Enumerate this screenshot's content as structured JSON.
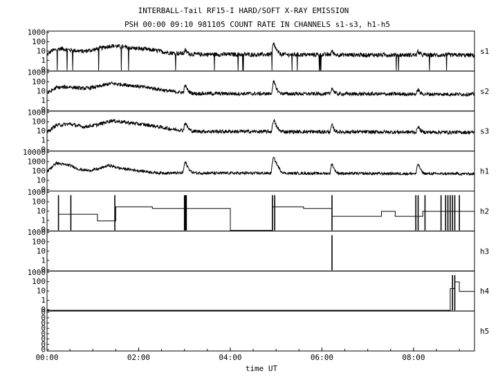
{
  "chart_data": {
    "type": "line",
    "title": "INTERBALL-Tail RF15-I HARD/SOFT X-RAY EMISSION",
    "subtitle": "PSH 00:00 09:10 981105  COUNT RATE IN CHANNELS s1-s3, h1-h5",
    "xlabel": "time UT",
    "x_range_hours": [
      0,
      9.33
    ],
    "x_ticks": [
      {
        "h": 0,
        "label": "00:00"
      },
      {
        "h": 2,
        "label": "02:00"
      },
      {
        "h": 4,
        "label": "04:00"
      },
      {
        "h": 6,
        "label": "06:00"
      },
      {
        "h": 8,
        "label": "08:00"
      }
    ],
    "y_scale": "log",
    "panels": [
      {
        "channel": "s1",
        "ymin": 0.1,
        "ymax": 1000,
        "ytick_labels": [
          "1000",
          "100",
          "10",
          "1",
          "0"
        ],
        "baseline": 4,
        "noise": 0.45,
        "dips": true,
        "envelope": [
          [
            0,
            4
          ],
          [
            0.1,
            12
          ],
          [
            0.3,
            20
          ],
          [
            0.5,
            14
          ],
          [
            0.8,
            10
          ],
          [
            1.1,
            18
          ],
          [
            1.4,
            40
          ],
          [
            1.8,
            25
          ],
          [
            2.3,
            14
          ],
          [
            2.7,
            7
          ],
          [
            3.2,
            5
          ],
          [
            9.33,
            4
          ]
        ],
        "peaks": [
          {
            "t": 3.02,
            "a": 8,
            "w": 0.06
          },
          {
            "t": 4.95,
            "a": 60,
            "w": 0.06
          },
          {
            "t": 6.22,
            "a": 7,
            "w": 0.05
          },
          {
            "t": 8.1,
            "a": 6,
            "w": 0.05
          }
        ]
      },
      {
        "channel": "s2",
        "ymin": 0.1,
        "ymax": 1000,
        "ytick_labels": [
          "1000",
          "100",
          "10",
          "1",
          "0"
        ],
        "baseline": 5,
        "noise": 0.38,
        "dips": false,
        "envelope": [
          [
            0,
            6
          ],
          [
            0.2,
            25
          ],
          [
            0.5,
            30
          ],
          [
            0.8,
            20
          ],
          [
            1.1,
            30
          ],
          [
            1.4,
            70
          ],
          [
            1.8,
            45
          ],
          [
            2.3,
            22
          ],
          [
            2.7,
            10
          ],
          [
            3.2,
            6
          ],
          [
            9.33,
            5
          ]
        ],
        "peaks": [
          {
            "t": 3.02,
            "a": 35,
            "w": 0.06
          },
          {
            "t": 4.95,
            "a": 90,
            "w": 0.06
          },
          {
            "t": 6.22,
            "a": 20,
            "w": 0.05
          },
          {
            "t": 8.1,
            "a": 12,
            "w": 0.05
          }
        ]
      },
      {
        "channel": "s3",
        "ymin": 0.1,
        "ymax": 1000,
        "ytick_labels": [
          "1000",
          "100",
          "10",
          "1",
          "0"
        ],
        "baseline": 8,
        "noise": 0.38,
        "dips": false,
        "envelope": [
          [
            0,
            8
          ],
          [
            0.2,
            45
          ],
          [
            0.5,
            60
          ],
          [
            0.8,
            30
          ],
          [
            1.1,
            50
          ],
          [
            1.4,
            140
          ],
          [
            1.8,
            80
          ],
          [
            2.3,
            40
          ],
          [
            2.7,
            18
          ],
          [
            3.2,
            10
          ],
          [
            9.33,
            8
          ]
        ],
        "peaks": [
          {
            "t": 3.02,
            "a": 70,
            "w": 0.06
          },
          {
            "t": 4.95,
            "a": 150,
            "w": 0.06
          },
          {
            "t": 6.22,
            "a": 40,
            "w": 0.05
          },
          {
            "t": 8.1,
            "a": 30,
            "w": 0.05
          }
        ]
      },
      {
        "channel": "h1",
        "ymin": 0.1,
        "ymax": 10000,
        "ytick_labels": [
          "10000",
          "1000",
          "100",
          "10",
          "0"
        ],
        "baseline": 15,
        "noise": 0.35,
        "dips": false,
        "envelope": [
          [
            0,
            30
          ],
          [
            0.2,
            400
          ],
          [
            0.3,
            300
          ],
          [
            0.5,
            200
          ],
          [
            0.7,
            60
          ],
          [
            0.9,
            40
          ],
          [
            1.1,
            60
          ],
          [
            1.35,
            200
          ],
          [
            1.6,
            80
          ],
          [
            2.0,
            40
          ],
          [
            2.4,
            20
          ],
          [
            9.33,
            15
          ]
        ],
        "peaks": [
          {
            "t": 3.02,
            "a": 500,
            "w": 0.06
          },
          {
            "t": 4.95,
            "a": 2000,
            "w": 0.06
          },
          {
            "t": 6.22,
            "a": 300,
            "w": 0.05
          },
          {
            "t": 8.1,
            "a": 300,
            "w": 0.05
          }
        ]
      },
      {
        "channel": "h2",
        "ymin": 0.1,
        "ymax": 1000,
        "ytick_labels": [
          "1000",
          "100",
          "10",
          "1",
          "0"
        ],
        "steps": [
          [
            0.25,
            5
          ],
          [
            0.55,
            5
          ],
          [
            1.1,
            1
          ],
          [
            1.5,
            30
          ],
          [
            2.3,
            20
          ],
          [
            3.0,
            20
          ],
          [
            4.0,
            0.1
          ],
          [
            4.92,
            30
          ],
          [
            5.6,
            20
          ],
          [
            6.22,
            3
          ],
          [
            7.3,
            10
          ],
          [
            7.6,
            3
          ],
          [
            8.2,
            10
          ],
          [
            9.33,
            10
          ]
        ],
        "spikes": [
          0.25,
          0.52,
          1.48,
          3.0,
          3.02,
          3.04,
          4.92,
          4.97,
          6.22,
          8.05,
          8.1,
          8.25,
          8.6,
          8.7,
          8.75,
          8.8,
          8.85,
          8.9,
          9.0
        ]
      },
      {
        "channel": "h3",
        "ymin": 0.1,
        "ymax": 1000,
        "ytick_labels": [
          "1000",
          "100",
          "10",
          "1",
          "0"
        ],
        "spikes": [
          6.22
        ]
      },
      {
        "channel": "h4",
        "ymin": 0.1,
        "ymax": 1000,
        "ytick_labels": [
          "1000",
          "100",
          "10",
          "1",
          "0"
        ],
        "steps": [
          [
            0,
            0.1
          ],
          [
            8.8,
            20
          ],
          [
            8.9,
            100
          ],
          [
            9.0,
            10
          ],
          [
            9.33,
            10
          ]
        ],
        "spikes": [
          8.85,
          8.9
        ]
      },
      {
        "channel": "h5",
        "ymin": 0,
        "ymax": 1,
        "ytick_labels": [
          "0",
          "0",
          "0",
          "0",
          "0",
          "0",
          "0",
          "0"
        ]
      }
    ]
  }
}
